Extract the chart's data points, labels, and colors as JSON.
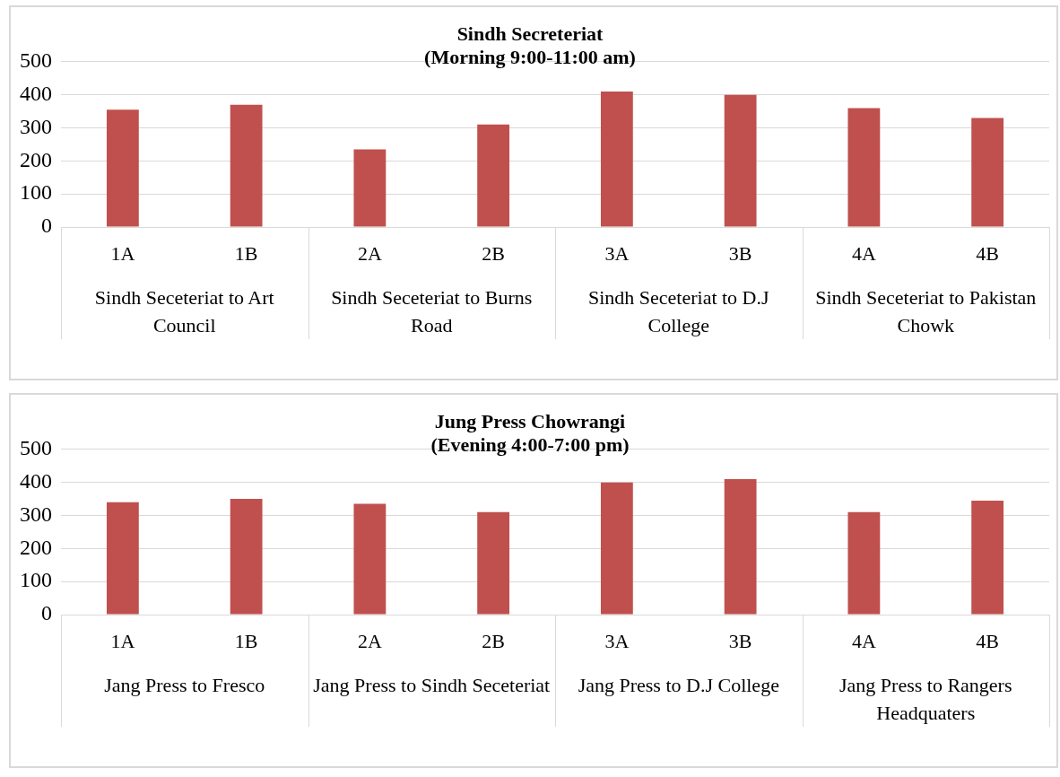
{
  "chart_data": [
    {
      "type": "bar",
      "title": "Sindh Secreteriat",
      "subtitle": "(Morning 9:00-11:00 am)",
      "categories": [
        "1A",
        "1B",
        "2A",
        "2B",
        "3A",
        "3B",
        "4A",
        "4B"
      ],
      "values": [
        355,
        370,
        235,
        310,
        410,
        400,
        360,
        330
      ],
      "color": "#c0504d",
      "ylim": [
        0,
        500
      ],
      "yticks": [
        0,
        100,
        200,
        300,
        400,
        500
      ],
      "grid": "y",
      "annotations": [
        "Sindh Seceteriat to Art Council",
        "Sindh Seceteriat to Burns Road",
        "Sindh Seceteriat to D.J College",
        "Sindh Seceteriat to Pakistan Chowk"
      ]
    },
    {
      "type": "bar",
      "title": "Jung Press Chowrangi",
      "subtitle": "(Evening 4:00-7:00 pm)",
      "categories": [
        "1A",
        "1B",
        "2A",
        "2B",
        "3A",
        "3B",
        "4A",
        "4B"
      ],
      "values": [
        340,
        350,
        335,
        310,
        400,
        410,
        310,
        345
      ],
      "color": "#c0504d",
      "ylim": [
        0,
        500
      ],
      "yticks": [
        0,
        100,
        200,
        300,
        400,
        500
      ],
      "grid": "y",
      "annotations": [
        "Jang Press to Fresco",
        "Jang Press to Sindh Seceteriat",
        "Jang Press to D.J College",
        "Jang Press to Rangers Headquaters"
      ]
    }
  ]
}
